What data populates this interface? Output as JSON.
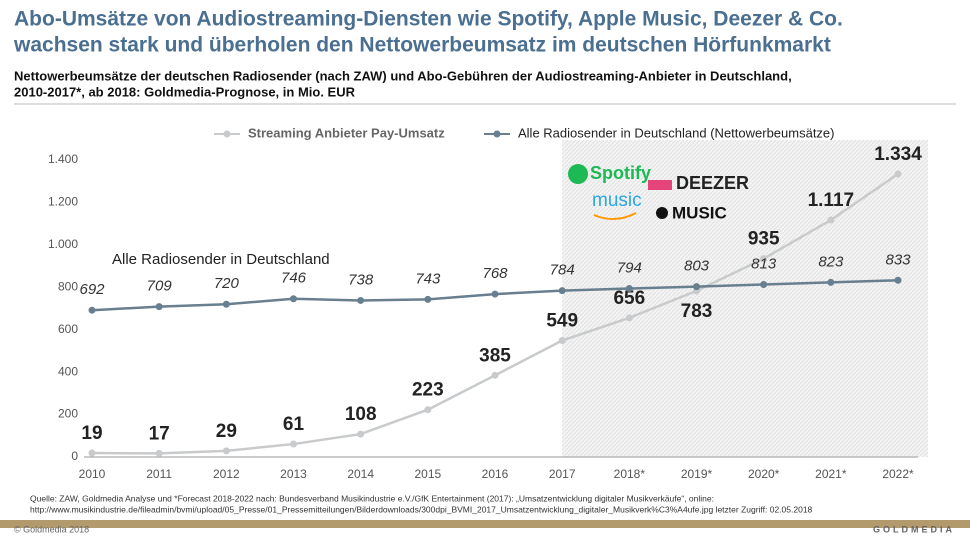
{
  "chart_data": {
    "type": "line",
    "title": [
      "Abo-Umsätze von Audiostreaming-Diensten wie Spotify, Apple Music, Deezer & Co.",
      "wachsen stark und überholen den Nettowerbeumsatz im deutschen Hörfunkmarkt"
    ],
    "subtitle": [
      "Nettowerbeumsätze der deutschen Radiosender (nach ZAW) und Abo-Gebühren der Audiostreaming-Anbieter in Deutschland,",
      "2010-2017*, ab 2018: Goldmedia-Prognose, in Mio. EUR"
    ],
    "categories": [
      "2010",
      "2011",
      "2012",
      "2013",
      "2014",
      "2015",
      "2016",
      "2017",
      "2018*",
      "2019*",
      "2020*",
      "2021*",
      "2022*"
    ],
    "series": [
      {
        "name": "Streaming Anbieter Pay-Umsatz",
        "color": "#c8cacc",
        "values": [
          19,
          17,
          29,
          61,
          108,
          223,
          385,
          549,
          656,
          783,
          935,
          1117,
          1334
        ],
        "value_labels": [
          "19",
          "17",
          "29",
          "61",
          "108",
          "223",
          "385",
          "549",
          "656",
          "783",
          "935",
          "1.117",
          "1.334"
        ]
      },
      {
        "name": "Alle Radiosender in Deutschland (Nettowerbeumsätze)",
        "color": "#687f90",
        "values": [
          692,
          709,
          720,
          746,
          738,
          743,
          768,
          784,
          794,
          803,
          813,
          823,
          833
        ]
      }
    ],
    "ylim": [
      0,
      1400
    ],
    "yticks": [
      0,
      200,
      400,
      600,
      800,
      {
        "value": 1000,
        "label": "1.000"
      },
      {
        "value": 1200,
        "label": "1.200"
      },
      {
        "value": 1400,
        "label": "1.400"
      }
    ],
    "grid": false,
    "annotation": "Alle Radiosender in Deutschland",
    "logos": [
      "Spotify",
      "DEEZER",
      "music",
      "MUSIC"
    ],
    "source": [
      "Quelle: ZAW, Goldmedia Analyse und *Forecast 2018-2022 nach: Bundesverband Musikindustrie e.V./GfK Entertainment (2017): „Umsatzentwicklung digitaler Musikverkäufe“, online:",
      "http://www.musikindustrie.de/fileadmin/bvmi/upload/05_Presse/01_Pressemitteilungen/Bilderdownloads/300dpi_BVMI_2017_Umsatzentwicklung_digitaler_Musikverk%C3%A4ufe.jpg letzter Zugriff: 02.05.2018"
    ],
    "copyright": "© Goldmedia 2018",
    "brand": "GOLDMEDIA"
  }
}
